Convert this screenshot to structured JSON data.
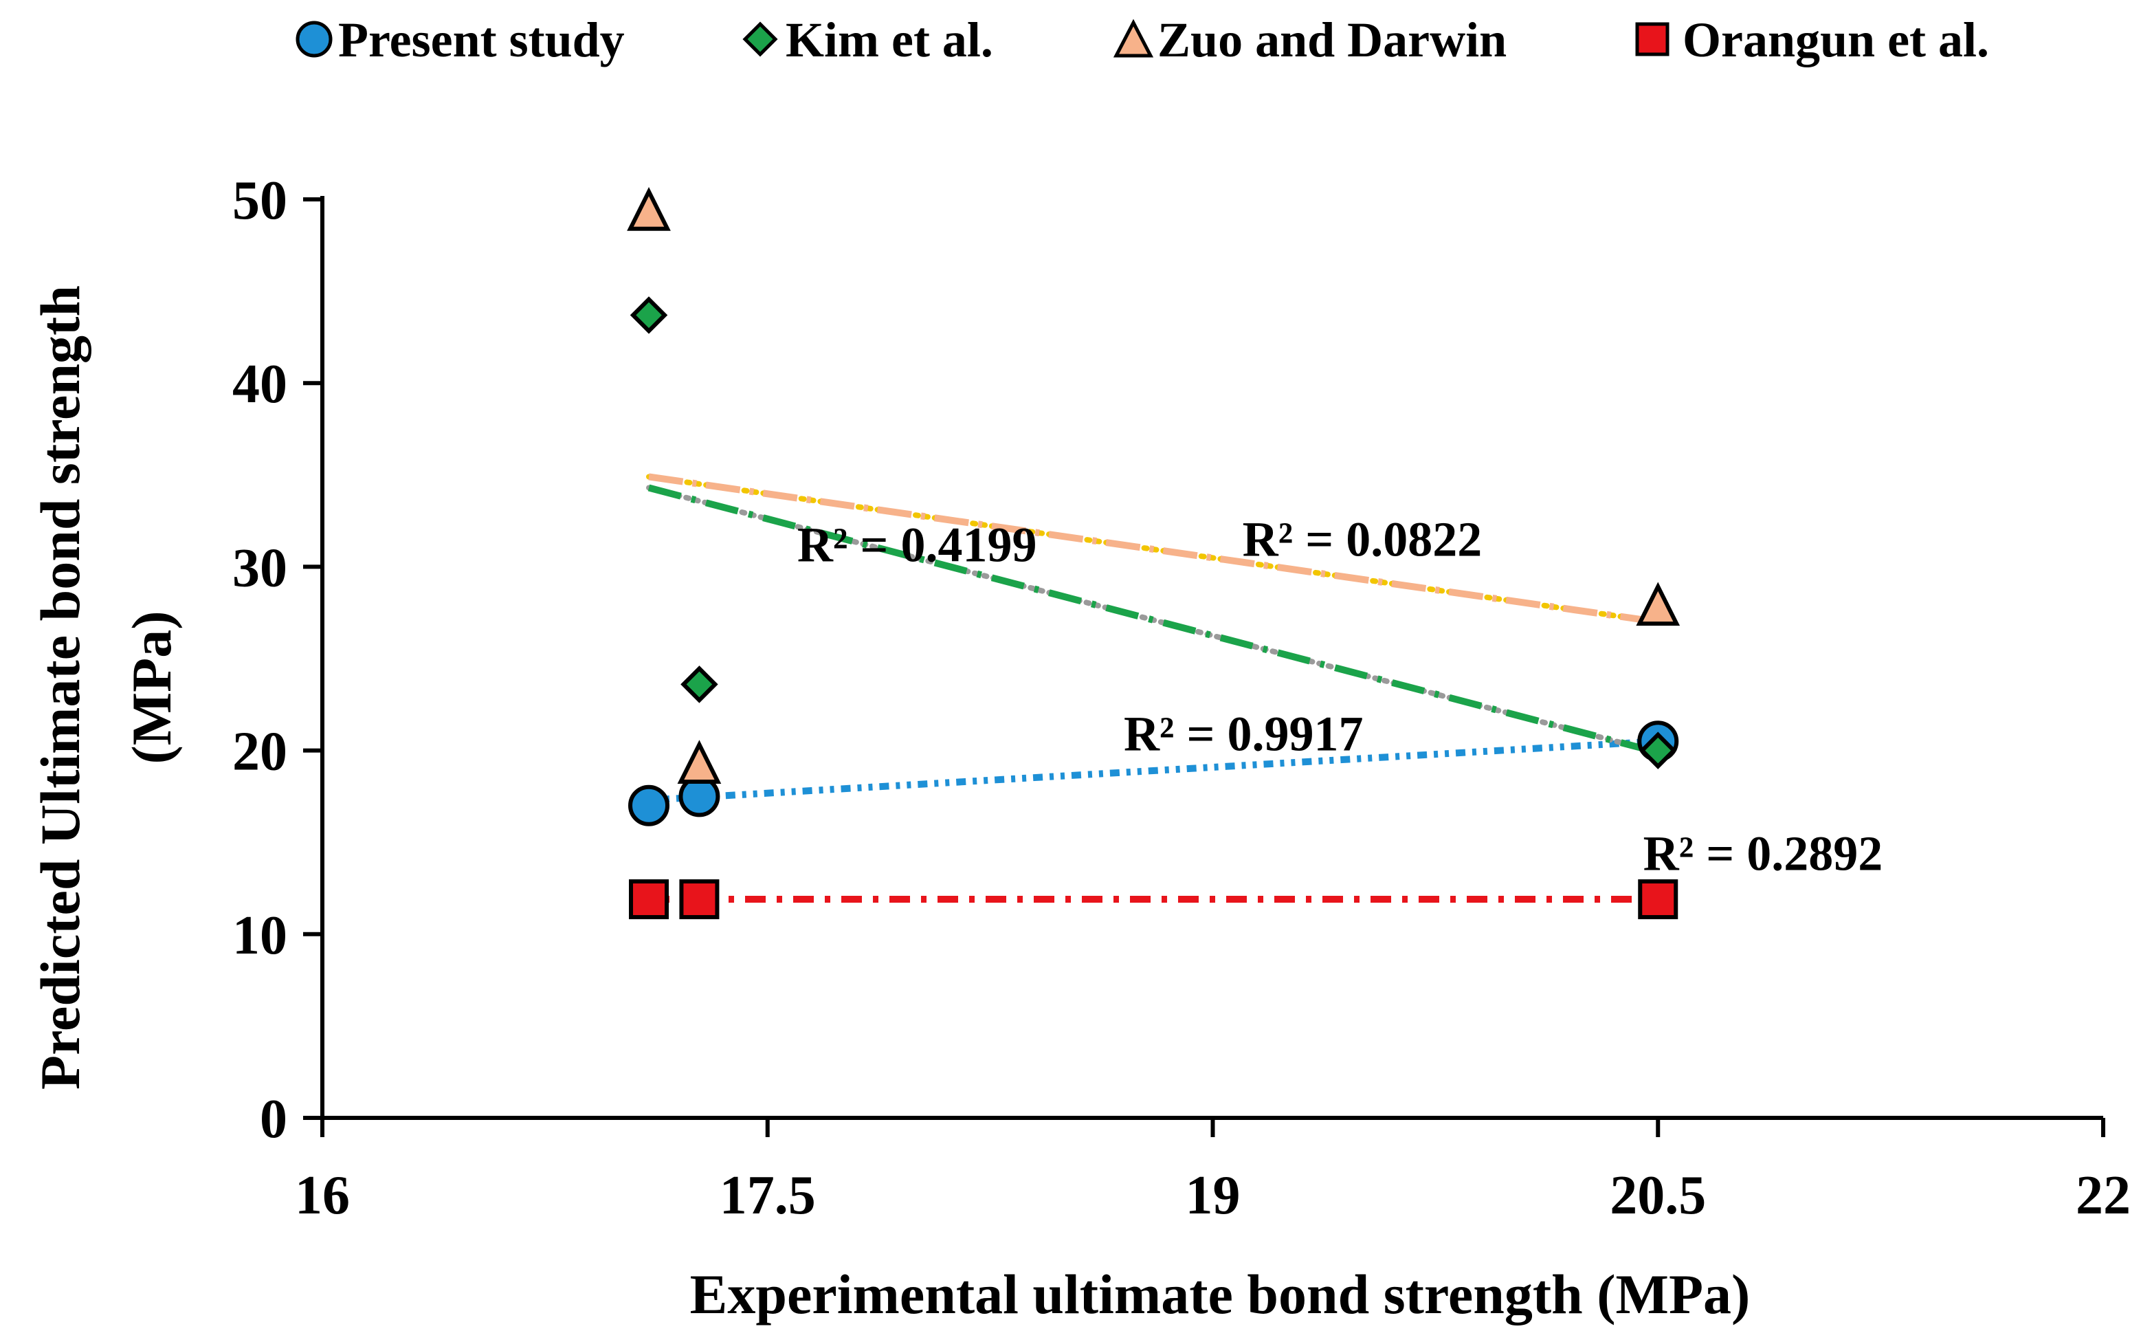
{
  "chart_data": {
    "type": "scatter",
    "title": "",
    "xlabel": "Experimental ultimate bond strength (MPa)",
    "ylabel_line1": "Predicted Ultimate bond strength",
    "ylabel_line2": "(MPa)",
    "xlim": [
      16,
      22
    ],
    "ylim": [
      0,
      50
    ],
    "x_ticks": [
      16,
      17.5,
      19,
      20.5,
      22
    ],
    "x_tick_labels": [
      "16",
      "17.5",
      "19",
      "20.5",
      "22"
    ],
    "y_ticks": [
      0,
      10,
      20,
      30,
      40,
      50
    ],
    "y_tick_labels": [
      "0",
      "10",
      "20",
      "30",
      "40",
      "50"
    ],
    "grid": false,
    "legend_position": "top",
    "series": [
      {
        "name": "Present study",
        "marker": "circle",
        "color": "#1E90D6",
        "trend_color": "#1E90D6",
        "x": [
          17.1,
          17.27,
          20.5
        ],
        "y": [
          17.0,
          17.5,
          20.5
        ],
        "trend": {
          "x": [
            17.1,
            20.5
          ],
          "y": [
            17.3,
            20.5
          ]
        },
        "r2_label": "R² = 0.9917",
        "r2_at": {
          "x": 18.7,
          "y": 20.0
        }
      },
      {
        "name": "Kim et al.",
        "marker": "diamond",
        "color": "#1BA34A",
        "trend_color": "#1BA34A",
        "x": [
          17.1,
          17.27,
          20.5
        ],
        "y": [
          43.7,
          23.6,
          20.0
        ],
        "trend": {
          "x": [
            17.1,
            20.5
          ],
          "y": [
            34.3,
            19.9
          ]
        },
        "r2_label": "R² = 0.4199",
        "r2_at": {
          "x": 17.6,
          "y": 30.3
        }
      },
      {
        "name": "Zuo and Darwin",
        "marker": "triangle",
        "color": "#F7B28A",
        "trend_color": "#F7B28A",
        "x": [
          17.1,
          17.27,
          20.5
        ],
        "y": [
          49.3,
          19.2,
          27.8
        ],
        "trend": {
          "x": [
            17.1,
            20.5
          ],
          "y": [
            34.9,
            27.0
          ]
        },
        "r2_label": "R² = 0.0822",
        "r2_at": {
          "x": 19.1,
          "y": 30.6
        }
      },
      {
        "name": "Orangun et al.",
        "marker": "square",
        "color": "#E8141B",
        "trend_color": "#E8141B",
        "x": [
          17.1,
          17.27,
          20.5
        ],
        "y": [
          11.9,
          11.9,
          11.9
        ],
        "trend": {
          "x": [
            17.1,
            20.5
          ],
          "y": [
            11.9,
            11.9
          ]
        },
        "r2_label": "R² = 0.2892",
        "r2_at": {
          "x": 20.45,
          "y": 13.5
        }
      }
    ]
  }
}
